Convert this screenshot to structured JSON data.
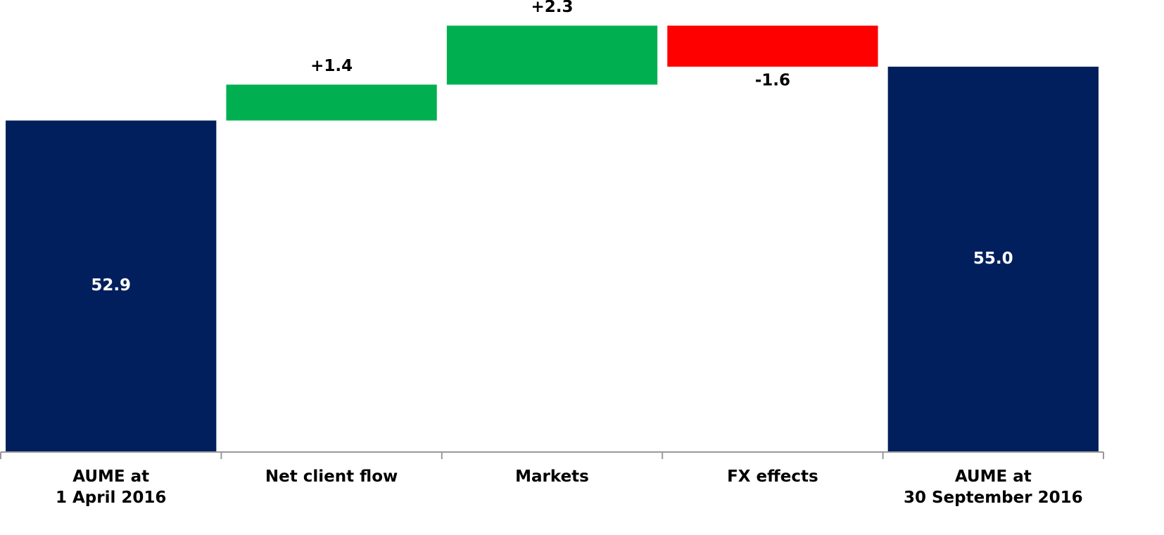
{
  "chart_data": {
    "type": "waterfall",
    "categories": [
      "AUME at\n1 April 2016",
      "Net client flow",
      "Markets",
      "FX effects",
      "AUME at\n30 September 2016"
    ],
    "values": [
      52.9,
      1.4,
      2.3,
      -1.6,
      55.0
    ],
    "value_labels": [
      "52.9",
      "+1.4",
      "+2.3",
      "-1.6",
      "55.0"
    ],
    "totals": [
      true,
      false,
      false,
      false,
      true
    ],
    "colors": [
      "#001f5c",
      "#00b050",
      "#00b050",
      "#ff0000",
      "#001f5c"
    ],
    "ylim": [
      40,
      57.6
    ]
  }
}
